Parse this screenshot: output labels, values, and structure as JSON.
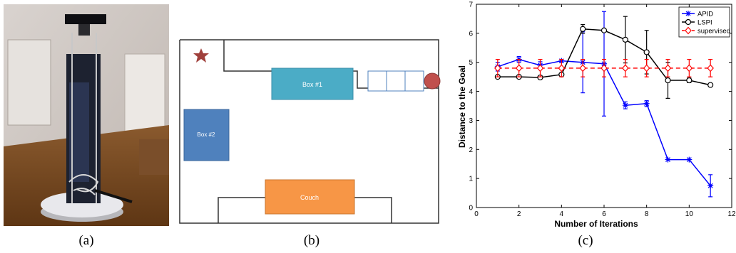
{
  "captions": {
    "a": "(a)",
    "b": "(b)",
    "c": "(c)"
  },
  "floor_plan": {
    "box1_label": "Box #1",
    "box2_label": "Box #2",
    "couch_label": "Couch",
    "colors": {
      "box1": "#4bacc6",
      "box2": "#4f81bd",
      "couch": "#f79646",
      "goal_star": "#a0403c",
      "robot_circle": "#c0504d",
      "cells": "#4f81bd"
    }
  },
  "chart_data": {
    "type": "line",
    "title": "",
    "xlabel": "Number of Iterations",
    "ylabel": "Distance to the Goal",
    "xlim": [
      0,
      12
    ],
    "ylim": [
      0,
      7
    ],
    "xticks": [
      0,
      2,
      4,
      6,
      8,
      10,
      12
    ],
    "yticks": [
      0,
      1,
      2,
      3,
      4,
      5,
      6,
      7
    ],
    "grid": false,
    "legend": "top-right",
    "series": [
      {
        "name": "APID",
        "color": "#0000ff",
        "marker": "star",
        "dash": "solid",
        "x": [
          1,
          2,
          3,
          4,
          5,
          6,
          7,
          8,
          9,
          10,
          11
        ],
        "y": [
          4.85,
          5.1,
          4.9,
          5.05,
          5.0,
          4.95,
          3.52,
          3.58,
          1.65,
          1.65,
          0.75
        ],
        "err": [
          0.15,
          0.1,
          0.12,
          0.05,
          1.05,
          1.8,
          0.12,
          0.1,
          0.0,
          0.0,
          0.38
        ]
      },
      {
        "name": "LSPI",
        "color": "#000000",
        "marker": "circle",
        "dash": "solid",
        "x": [
          1,
          2,
          3,
          4,
          5,
          6,
          7,
          8,
          9,
          10,
          11
        ],
        "y": [
          4.5,
          4.5,
          4.48,
          4.58,
          6.15,
          6.1,
          5.78,
          5.35,
          4.38,
          4.38,
          4.22
        ],
        "err": [
          0.0,
          0.0,
          0.0,
          0.0,
          0.15,
          0.0,
          0.8,
          0.75,
          0.62,
          0.08,
          0.0
        ]
      },
      {
        "name": "supervised",
        "color": "#ff0000",
        "marker": "diamond",
        "dash": "dashed",
        "x": [
          1,
          2,
          3,
          4,
          5,
          6,
          7,
          8,
          9,
          10,
          11
        ],
        "y": [
          4.8,
          4.8,
          4.8,
          4.8,
          4.8,
          4.8,
          4.8,
          4.8,
          4.8,
          4.8,
          4.8
        ],
        "err": [
          0.3,
          0.3,
          0.3,
          0.3,
          0.3,
          0.3,
          0.3,
          0.3,
          0.3,
          0.3,
          0.3
        ]
      }
    ]
  }
}
